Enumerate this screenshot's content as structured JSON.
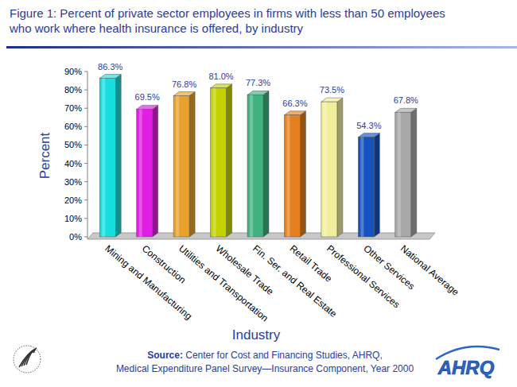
{
  "chart_data": {
    "type": "bar",
    "title": "Figure 1: Percent of private sector employees in firms with less than 50 employees who work where health insurance is offered, by industry",
    "x_label": "Industry",
    "y_label": "Percent",
    "categories": [
      "Mining and Manufacturing",
      "Construction",
      "Utilities and Transportation",
      "Wholesale Trade",
      "Fin. Ser. and Real Estate",
      "Retail Trade",
      "Professional Services",
      "Other Services",
      "National Average"
    ],
    "values": [
      86.3,
      69.5,
      76.8,
      81.0,
      77.3,
      66.3,
      73.5,
      54.3,
      67.8
    ],
    "value_labels": [
      "86.3%",
      "69.5%",
      "76.8%",
      "81.0%",
      "77.3%",
      "66.3%",
      "73.5%",
      "54.3%",
      "67.8%"
    ],
    "colors": [
      "#19dede",
      "#e21ee2",
      "#e9a12a",
      "#c4d200",
      "#3fb27f",
      "#e5801f",
      "#f2ef9c",
      "#1452c2",
      "#a8a8a8"
    ],
    "ylim": [
      0,
      90
    ],
    "yticks": [
      {
        "value": 0,
        "label": "0%"
      },
      {
        "value": 10,
        "label": "10%"
      },
      {
        "value": 20,
        "label": "20%"
      },
      {
        "value": 30,
        "label": "30%"
      },
      {
        "value": 40,
        "label": "40%"
      },
      {
        "value": 50,
        "label": "50%"
      },
      {
        "value": 60,
        "label": "60%"
      },
      {
        "value": 70,
        "label": "70%"
      },
      {
        "value": 80,
        "label": "80%"
      },
      {
        "value": 90,
        "label": "90%"
      }
    ],
    "grid": false,
    "data_labels": true,
    "annotations": [
      "Source: Center for Cost and Financing Studies, AHRQ,",
      "Medical Expenditure Panel Survey—Insurance Component, Year 2000",
      "AHRQ"
    ]
  }
}
